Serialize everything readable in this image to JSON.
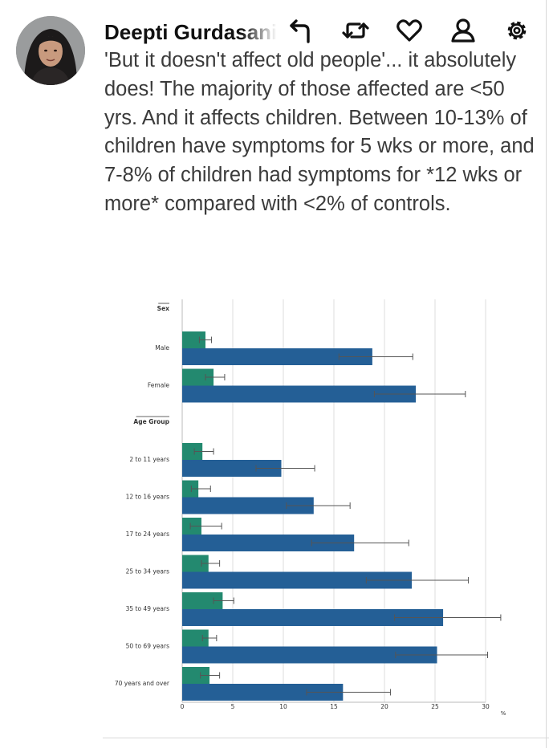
{
  "post": {
    "author": "Deepti Gurdasani",
    "text": "'But it doesn't affect old people'... it absolutely does! The majority of those affected are <50 yrs. And it affects children.  Between 10-13% of children have symptoms for 5 wks or more, and 7-8% of children had symptoms for *12 wks or more* compared with <2% of controls."
  },
  "actions": [
    {
      "name": "reply-icon"
    },
    {
      "name": "retweet-icon"
    },
    {
      "name": "like-icon"
    },
    {
      "name": "profile-icon"
    },
    {
      "name": "settings-icon"
    }
  ],
  "colors": {
    "green": "#23896f",
    "blue": "#245f96",
    "grid": "#dddddd",
    "error_bar": "#555555"
  },
  "chart_data": {
    "type": "bar",
    "orientation": "horizontal",
    "x_unit": "%",
    "xlim": [
      0,
      30
    ],
    "x_ticks": [
      0,
      5,
      10,
      15,
      20,
      25,
      30
    ],
    "grid": true,
    "sections": [
      {
        "heading": "Sex",
        "categories": [
          {
            "label": "Male",
            "green": 2.3,
            "green_err": [
              1.7,
              2.9
            ],
            "blue": 18.8,
            "blue_err": [
              15.5,
              22.8
            ]
          },
          {
            "label": "Female",
            "green": 3.1,
            "green_err": [
              2.3,
              4.2
            ],
            "blue": 23.1,
            "blue_err": [
              19.0,
              28.0
            ]
          }
        ]
      },
      {
        "heading": "Age Group",
        "categories": [
          {
            "label": "2 to 11 years",
            "green": 2.0,
            "green_err": [
              1.2,
              3.1
            ],
            "blue": 9.8,
            "blue_err": [
              7.3,
              13.1
            ]
          },
          {
            "label": "12 to 16 years",
            "green": 1.6,
            "green_err": [
              0.9,
              2.8
            ],
            "blue": 13.0,
            "blue_err": [
              10.3,
              16.6
            ]
          },
          {
            "label": "17 to 24 years",
            "green": 1.9,
            "green_err": [
              0.8,
              3.9
            ],
            "blue": 17.0,
            "blue_err": [
              12.8,
              22.4
            ]
          },
          {
            "label": "25 to 34 years",
            "green": 2.6,
            "green_err": [
              1.9,
              3.7
            ],
            "blue": 22.7,
            "blue_err": [
              18.2,
              28.3
            ]
          },
          {
            "label": "35 to 49 years",
            "green": 4.0,
            "green_err": [
              3.1,
              5.1
            ],
            "blue": 25.8,
            "blue_err": [
              21.0,
              31.5
            ]
          },
          {
            "label": "50 to 69 years",
            "green": 2.6,
            "green_err": [
              2.0,
              3.4
            ],
            "blue": 25.2,
            "blue_err": [
              21.1,
              30.2
            ]
          },
          {
            "label": "70 years and over",
            "green": 2.7,
            "green_err": [
              1.8,
              3.7
            ],
            "blue": 15.9,
            "blue_err": [
              12.3,
              20.6
            ]
          }
        ]
      }
    ]
  }
}
